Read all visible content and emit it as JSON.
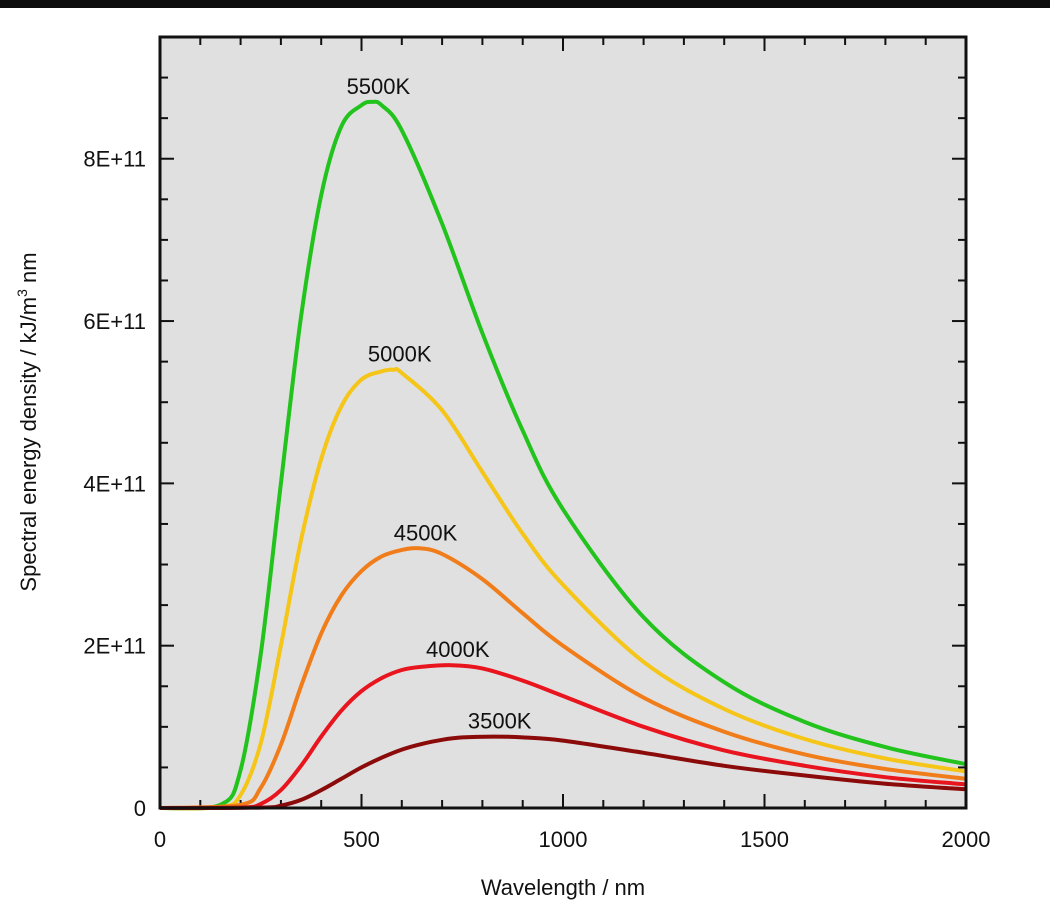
{
  "chart_data": {
    "type": "line",
    "title": "",
    "xlabel": "Wavelength / nm",
    "ylabel_parts": [
      "Spectral energy density / kJ/m",
      "3",
      " nm"
    ],
    "xlim": [
      0,
      2000
    ],
    "ylim": [
      0,
      950000000000
    ],
    "x_ticks": [
      0,
      500,
      1000,
      1500,
      2000
    ],
    "x_tick_labels": [
      "0",
      "500",
      "1000",
      "1500",
      "2000"
    ],
    "y_ticks": [
      0,
      200000000000,
      400000000000,
      600000000000,
      800000000000
    ],
    "y_tick_labels": [
      "0",
      "2E+11",
      "4E+11",
      "6E+11",
      "8E+11"
    ],
    "grid": false,
    "background": "#e0e0e0",
    "series": [
      {
        "name": "5500K",
        "color": "#22c31c",
        "x": [
          0,
          150,
          200,
          250,
          300,
          350,
          400,
          450,
          500,
          527,
          550,
          600,
          700,
          800,
          900,
          1000,
          1200,
          1400,
          1600,
          1800,
          2000
        ],
        "values": [
          0,
          4000000000,
          47000000000,
          190000000000,
          400000000000,
          605000000000,
          755000000000,
          840000000000,
          866000000000,
          870000000000,
          866000000000,
          835000000000,
          720000000000,
          585000000000,
          465000000000,
          368000000000,
          235000000000,
          155000000000,
          106000000000,
          75000000000,
          54000000000
        ]
      },
      {
        "name": "5000K",
        "color": "#f5c518",
        "x": [
          0,
          150,
          200,
          250,
          300,
          350,
          400,
          450,
          500,
          550,
          580,
          600,
          700,
          800,
          900,
          1000,
          1200,
          1400,
          1600,
          1800,
          2000
        ],
        "values": [
          0,
          1000000000,
          16000000000,
          80000000000,
          200000000000,
          330000000000,
          430000000000,
          495000000000,
          528000000000,
          538000000000,
          540000000000,
          536000000000,
          490000000000,
          414000000000,
          338000000000,
          275000000000,
          180000000000,
          122000000000,
          85000000000,
          61000000000,
          45000000000
        ]
      },
      {
        "name": "4500K",
        "color": "#f07d1a",
        "x": [
          0,
          200,
          250,
          300,
          350,
          400,
          450,
          500,
          550,
          600,
          644,
          700,
          800,
          900,
          1000,
          1200,
          1400,
          1600,
          1800,
          2000
        ],
        "values": [
          0,
          4000000000,
          25000000000,
          78000000000,
          150000000000,
          215000000000,
          262000000000,
          292000000000,
          310000000000,
          318000000000,
          320000000000,
          313000000000,
          282000000000,
          240000000000,
          200000000000,
          136000000000,
          94000000000,
          66000000000,
          48000000000,
          36000000000
        ]
      },
      {
        "name": "4000K",
        "color": "#e8141e",
        "x": [
          0,
          200,
          250,
          300,
          350,
          400,
          450,
          500,
          550,
          600,
          650,
          724,
          800,
          900,
          1000,
          1200,
          1400,
          1600,
          1800,
          2000
        ],
        "values": [
          0,
          500000000,
          5000000000,
          22000000000,
          52000000000,
          88000000000,
          120000000000,
          144000000000,
          160000000000,
          170000000000,
          174000000000,
          176000000000,
          172000000000,
          157000000000,
          138000000000,
          100000000000,
          71000000000,
          52000000000,
          38000000000,
          29000000000
        ]
      },
      {
        "name": "3500K",
        "color": "#8b0a0a",
        "x": [
          0,
          250,
          300,
          350,
          400,
          450,
          500,
          550,
          600,
          650,
          700,
          750,
          828,
          900,
          1000,
          1200,
          1400,
          1600,
          1800,
          2000
        ],
        "values": [
          0,
          500000000,
          3000000000,
          10000000000,
          22000000000,
          36000000000,
          50000000000,
          62000000000,
          72000000000,
          79000000000,
          84000000000,
          87000000000,
          88000000000,
          87000000000,
          83000000000,
          68000000000,
          52000000000,
          40000000000,
          30000000000,
          23000000000
        ]
      }
    ],
    "peak_labels": [
      {
        "text": "5500K",
        "x": 527,
        "y": 870000000000
      },
      {
        "text": "5000K",
        "x": 580,
        "y": 540000000000
      },
      {
        "text": "4500K",
        "x": 644,
        "y": 320000000000
      },
      {
        "text": "4000K",
        "x": 724,
        "y": 176000000000
      },
      {
        "text": "3500K",
        "x": 828,
        "y": 88000000000
      }
    ]
  }
}
